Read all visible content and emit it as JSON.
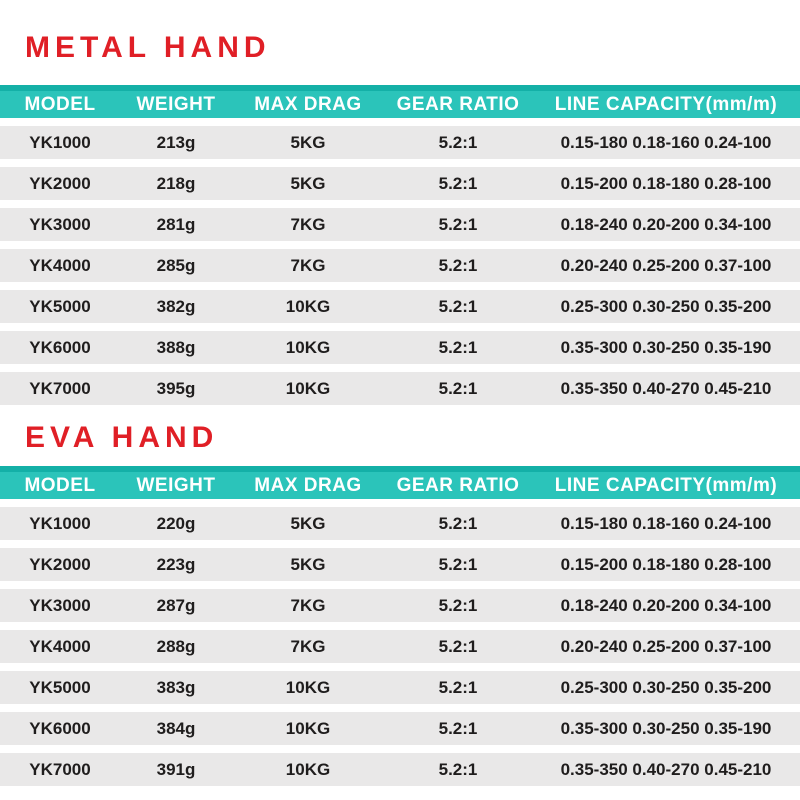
{
  "colors": {
    "page_bg": "#ffffff",
    "accent_teal": "#2bc4ba",
    "accent_teal_dark": "#14b0a7",
    "title_red": "#e01f26",
    "row_gray": "#e9e8e8",
    "header_text": "#ffffff",
    "cell_text": "#1f1d1d"
  },
  "columns": [
    "MODEL",
    "WEIGHT",
    "MAX DRAG",
    "GEAR RATIO",
    "LINE CAPACITY(mm/m)"
  ],
  "tables": [
    {
      "title": "METAL HAND",
      "rows": [
        [
          "YK1000",
          "213g",
          "5KG",
          "5.2:1",
          "0.15-180 0.18-160 0.24-100"
        ],
        [
          "YK2000",
          "218g",
          "5KG",
          "5.2:1",
          "0.15-200 0.18-180 0.28-100"
        ],
        [
          "YK3000",
          "281g",
          "7KG",
          "5.2:1",
          "0.18-240 0.20-200 0.34-100"
        ],
        [
          "YK4000",
          "285g",
          "7KG",
          "5.2:1",
          "0.20-240 0.25-200 0.37-100"
        ],
        [
          "YK5000",
          "382g",
          "10KG",
          "5.2:1",
          "0.25-300 0.30-250 0.35-200"
        ],
        [
          "YK6000",
          "388g",
          "10KG",
          "5.2:1",
          "0.35-300 0.30-250 0.35-190"
        ],
        [
          "YK7000",
          "395g",
          "10KG",
          "5.2:1",
          "0.35-350 0.40-270 0.45-210"
        ]
      ]
    },
    {
      "title": "EVA HAND",
      "rows": [
        [
          "YK1000",
          "220g",
          "5KG",
          "5.2:1",
          "0.15-180 0.18-160 0.24-100"
        ],
        [
          "YK2000",
          "223g",
          "5KG",
          "5.2:1",
          "0.15-200 0.18-180 0.28-100"
        ],
        [
          "YK3000",
          "287g",
          "7KG",
          "5.2:1",
          "0.18-240 0.20-200 0.34-100"
        ],
        [
          "YK4000",
          "288g",
          "7KG",
          "5.2:1",
          "0.20-240 0.25-200 0.37-100"
        ],
        [
          "YK5000",
          "383g",
          "10KG",
          "5.2:1",
          "0.25-300 0.30-250 0.35-200"
        ],
        [
          "YK6000",
          "384g",
          "10KG",
          "5.2:1",
          "0.35-300 0.30-250 0.35-190"
        ],
        [
          "YK7000",
          "391g",
          "10KG",
          "5.2:1",
          "0.35-350 0.40-270 0.45-210"
        ]
      ]
    }
  ]
}
